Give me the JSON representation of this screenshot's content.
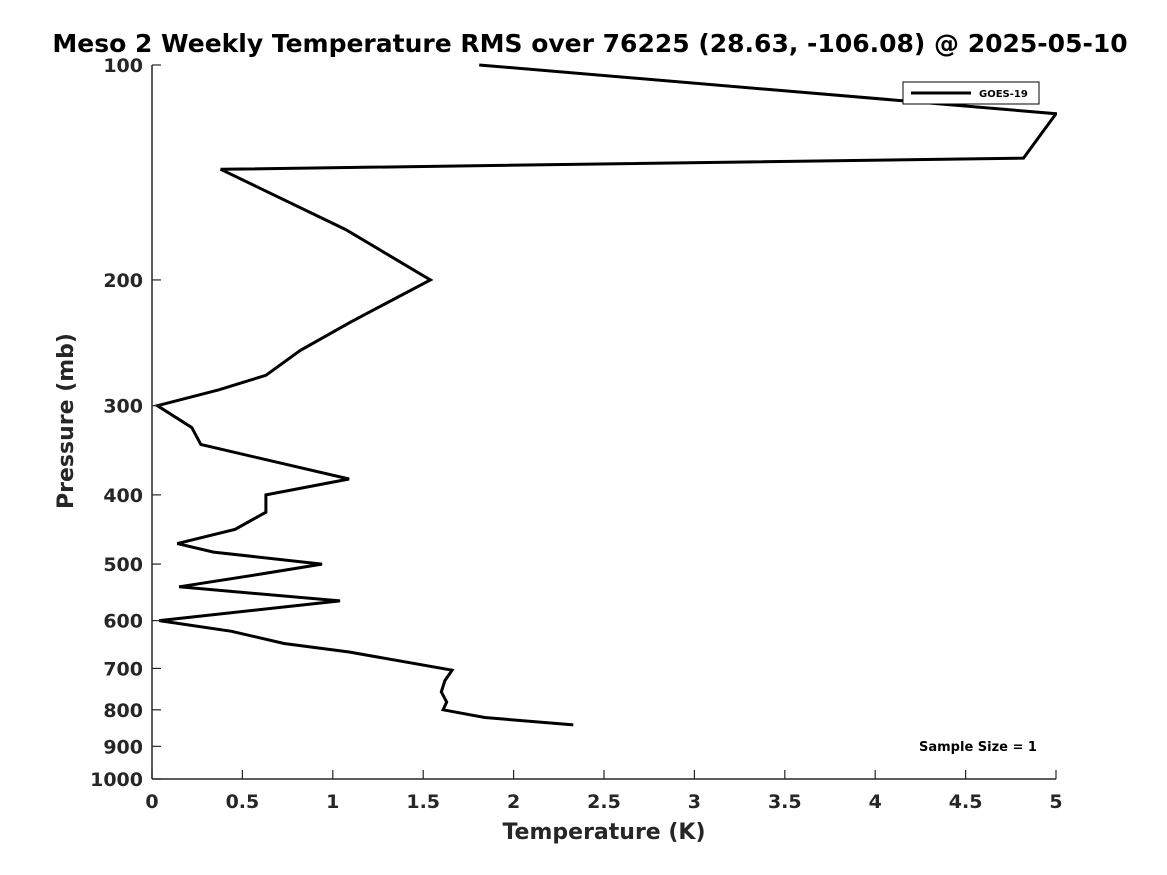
{
  "chart_data": {
    "type": "line",
    "title": "Meso 2 Weekly Temperature RMS over 76225 (28.63, -106.08) @ 2025-05-10",
    "xlabel": "Temperature (K)",
    "ylabel": "Pressure (mb)",
    "xlim": [
      0,
      5
    ],
    "ylim": [
      100,
      1000
    ],
    "y_scale": "log",
    "y_reversed": true,
    "x_ticks": [
      0,
      0.5,
      1,
      1.5,
      2,
      2.5,
      3,
      3.5,
      4,
      4.5,
      5
    ],
    "x_tick_labels": [
      "0",
      "0.5",
      "1",
      "1.5",
      "2",
      "2.5",
      "3",
      "3.5",
      "4",
      "4.5",
      "5"
    ],
    "y_ticks": [
      100,
      200,
      300,
      400,
      500,
      600,
      700,
      800,
      900,
      1000
    ],
    "y_tick_labels": [
      "100",
      "200",
      "300",
      "400",
      "500",
      "600",
      "700",
      "800",
      "900",
      "1000"
    ],
    "grid": false,
    "legend_position": "top-right",
    "annotation": "Sample Size = 1",
    "series": [
      {
        "name": "GOES-19",
        "color": "#000000",
        "x": [
          1.81,
          5.0,
          5.0,
          4.82,
          0.38,
          1.07,
          1.54,
          1.1,
          0.82,
          0.63,
          0.37,
          0.03,
          0.22,
          0.27,
          1.09,
          0.63,
          0.63,
          0.46,
          0.14,
          0.34,
          0.94,
          0.59,
          0.15,
          1.04,
          0.04,
          0.44,
          0.73,
          1.09,
          1.66,
          1.62,
          1.6,
          1.63,
          1.61,
          1.84,
          2.33
        ],
        "y": [
          100,
          117,
          117,
          135,
          140,
          170,
          200,
          229,
          251,
          272,
          285,
          300,
          322,
          340,
          380,
          400,
          423,
          447,
          468,
          481,
          500,
          517,
          538,
          563,
          600,
          621,
          646,
          664,
          704,
          728,
          755,
          780,
          800,
          820,
          840
        ]
      }
    ]
  }
}
